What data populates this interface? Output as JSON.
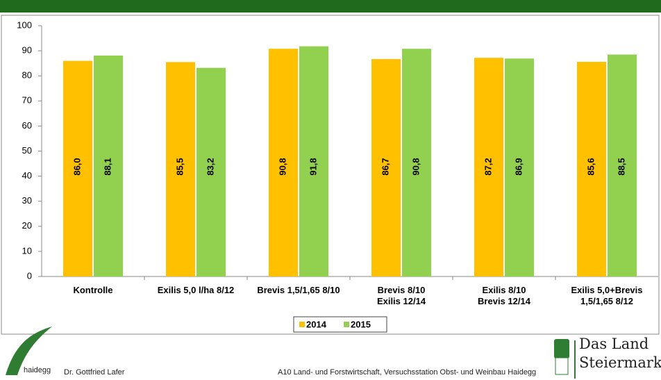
{
  "chart_data": {
    "type": "bar",
    "categories": [
      "Kontrolle",
      "Exilis 5,0 l/ha 8/12",
      "Brevis 1,5/1,65 8/10",
      "Brevis 8/10\nExilis 12/14",
      "Exilis 8/10\nBrevis 12/14",
      "Exilis 5,0+Brevis\n1,5/1,65 8/12"
    ],
    "series": [
      {
        "name": "2014",
        "color": "#ffc000",
        "values": [
          86.0,
          85.5,
          90.8,
          86.7,
          87.2,
          85.6
        ],
        "value_labels": [
          "86,0",
          "85,5",
          "90,8",
          "86,7",
          "87,2",
          "85,6"
        ]
      },
      {
        "name": "2015",
        "color": "#92d050",
        "values": [
          88.1,
          83.2,
          91.8,
          90.8,
          86.9,
          88.5
        ],
        "value_labels": [
          "88,1",
          "83,2",
          "91,8",
          "90,8",
          "86,9",
          "88,5"
        ]
      }
    ],
    "ylim": [
      0,
      100
    ],
    "yticks": [
      0,
      10,
      20,
      30,
      40,
      50,
      60,
      70,
      80,
      90,
      100
    ],
    "grid": false,
    "legend": "bottom"
  },
  "footer": {
    "logo_text": "haidegg",
    "author": "Dr. Gottfried Lafer",
    "institution": "A10 Land- und Forstwirtschaft, Versuchsstation Obst- und Weinbau Haidegg",
    "brand_line1": "Das Land",
    "brand_line2": "Steiermark"
  }
}
